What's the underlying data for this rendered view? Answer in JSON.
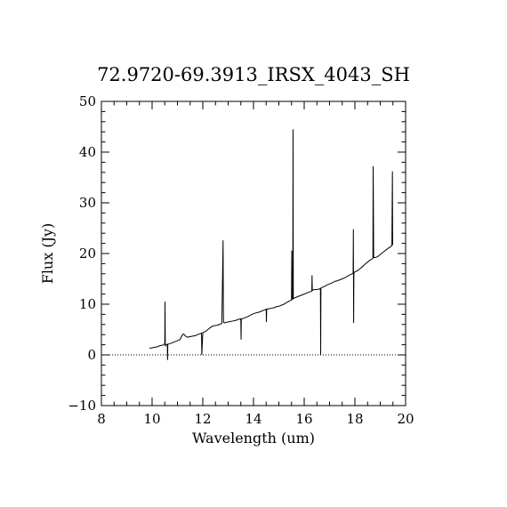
{
  "chart_data": {
    "type": "line",
    "title": "72.9720-69.3913_IRSX_4043_SH",
    "xlabel": "Wavelength (um)",
    "ylabel": "Flux (Jy)",
    "xlim": [
      8,
      20
    ],
    "ylim": [
      -10,
      50
    ],
    "x_ticks": [
      "8",
      "10",
      "12",
      "14",
      "16",
      "18",
      "20"
    ],
    "y_ticks": [
      "−10",
      "0",
      "10",
      "20",
      "30",
      "40",
      "50"
    ],
    "zero_reference_line": 0,
    "grid": false,
    "line_color": "#000000",
    "series": [
      {
        "x": [
          9.9,
          10.0,
          10.1,
          10.2,
          10.3,
          10.4,
          10.45,
          10.5,
          10.51,
          10.52,
          10.55,
          10.6,
          10.61,
          10.62,
          10.7,
          10.8,
          10.9,
          11.0,
          11.1,
          11.2,
          11.25,
          11.3,
          11.35,
          11.4,
          11.5,
          11.6,
          11.7,
          11.8,
          11.9,
          11.95,
          11.96,
          12.0,
          12.1,
          12.2,
          12.3,
          12.4,
          12.5,
          12.6,
          12.7,
          12.75,
          12.76,
          12.8,
          12.81,
          12.82,
          12.85,
          12.9,
          13.0,
          13.1,
          13.2,
          13.3,
          13.4,
          13.5,
          13.51,
          13.52,
          13.6,
          13.7,
          13.8,
          13.9,
          14.0,
          14.1,
          14.2,
          14.3,
          14.4,
          14.5,
          14.51,
          14.52,
          14.6,
          14.7,
          14.8,
          14.9,
          15.0,
          15.1,
          15.2,
          15.3,
          15.4,
          15.5,
          15.51,
          15.52,
          15.55,
          15.56,
          15.57,
          15.6,
          15.7,
          15.8,
          15.9,
          16.0,
          16.1,
          16.2,
          16.3,
          16.31,
          16.32,
          16.4,
          16.5,
          16.6,
          16.64,
          16.65,
          16.66,
          16.7,
          16.8,
          16.9,
          17.0,
          17.1,
          17.2,
          17.3,
          17.4,
          17.5,
          17.6,
          17.7,
          17.8,
          17.9,
          17.93,
          17.94,
          17.95,
          17.96,
          17.97,
          18.0,
          18.1,
          18.2,
          18.3,
          18.4,
          18.5,
          18.6,
          18.7,
          18.71,
          18.72,
          18.73,
          18.74,
          18.8,
          18.9,
          19.0,
          19.1,
          19.2,
          19.3,
          19.4,
          19.45,
          19.46,
          19.47,
          19.48,
          19.49,
          19.5
        ],
        "y": [
          1.3,
          1.4,
          1.5,
          1.6,
          1.8,
          1.9,
          2.0,
          2.2,
          10.5,
          1.8,
          2.0,
          2.1,
          -1.0,
          2.1,
          2.2,
          2.4,
          2.6,
          2.8,
          3.0,
          4.0,
          4.1,
          3.8,
          3.6,
          3.5,
          3.6,
          3.7,
          3.8,
          4.0,
          4.2,
          4.3,
          0.0,
          4.4,
          4.6,
          5.0,
          5.4,
          5.7,
          5.8,
          5.9,
          6.1,
          6.2,
          9.0,
          22.6,
          9.0,
          6.4,
          6.3,
          6.4,
          6.5,
          6.6,
          6.7,
          6.8,
          7.0,
          7.1,
          3.0,
          7.1,
          7.2,
          7.4,
          7.6,
          7.9,
          8.1,
          8.3,
          8.4,
          8.6,
          8.8,
          9.0,
          6.5,
          9.0,
          9.1,
          9.2,
          9.3,
          9.5,
          9.6,
          9.8,
          10.0,
          10.3,
          10.6,
          10.8,
          20.6,
          11.0,
          11.0,
          44.5,
          11.1,
          11.2,
          11.4,
          11.6,
          11.8,
          12.0,
          12.2,
          12.4,
          12.6,
          15.7,
          12.7,
          12.9,
          12.9,
          13.0,
          13.1,
          0.0,
          13.2,
          13.3,
          13.5,
          13.8,
          14.0,
          14.2,
          14.5,
          14.6,
          14.8,
          15.0,
          15.2,
          15.5,
          15.8,
          16.0,
          16.1,
          24.8,
          6.3,
          16.2,
          16.2,
          16.4,
          16.6,
          17.0,
          17.4,
          17.9,
          18.3,
          18.7,
          19.0,
          19.1,
          37.2,
          29.0,
          19.2,
          19.2,
          19.4,
          19.8,
          20.2,
          20.6,
          21.0,
          21.3,
          21.5,
          21.6,
          29.0,
          36.2,
          21.7,
          21.8
        ]
      }
    ]
  }
}
